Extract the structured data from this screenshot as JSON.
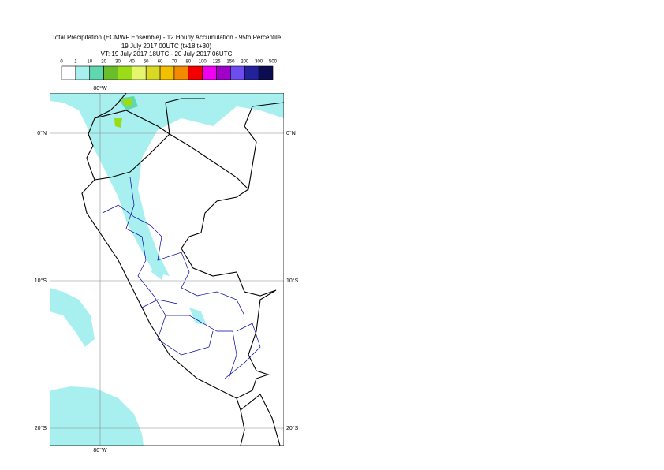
{
  "title": {
    "line1": "Total Precipitation (ECMWF Ensemble) - 12 Hourly Accumulation - 95th Percentile",
    "line2": "19 July 2017 00UTC (t+18,t+30)",
    "line3": "VT: 19 July 2017 18UTC - 20 July 2017 06UTC"
  },
  "legend": {
    "labels": [
      "0",
      "1",
      "10",
      "20",
      "30",
      "40",
      "50",
      "60",
      "70",
      "80",
      "100",
      "125",
      "150",
      "200",
      "300",
      "500"
    ],
    "colors": [
      "#ffffff",
      "#a8f0f0",
      "#5fd8b0",
      "#6cbd2c",
      "#9adc18",
      "#e6f56e",
      "#d9d925",
      "#f2c000",
      "#f48a00",
      "#f50000",
      "#f000f0",
      "#a000c8",
      "#6e4cf0",
      "#22229c",
      "#0c0c50"
    ]
  },
  "map": {
    "longitude_labels": [
      "80°W"
    ],
    "latitude_labels": [
      "0°N",
      "10°S",
      "20°S"
    ]
  }
}
